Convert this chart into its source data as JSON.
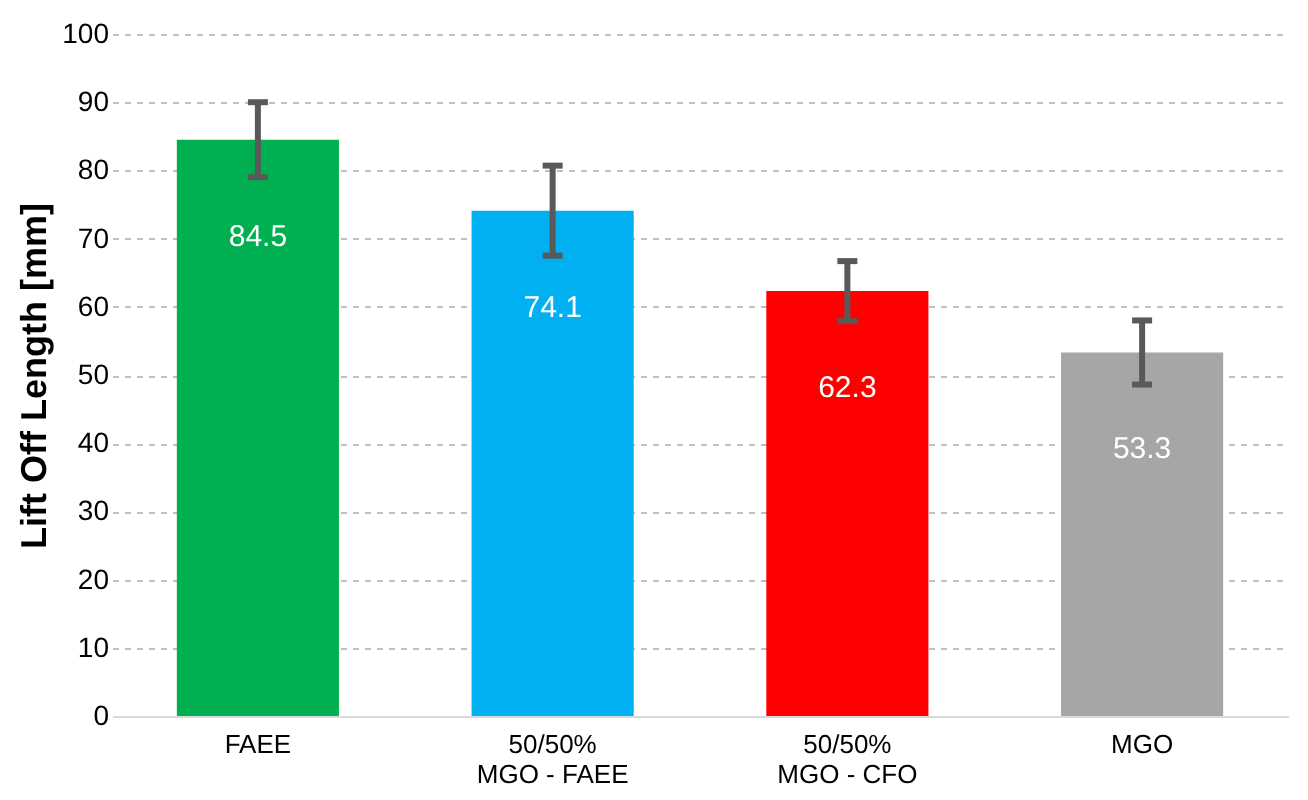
{
  "chart_data": {
    "type": "bar",
    "ylabel": "Lift Off Length [mm]",
    "categories": [
      "FAEE",
      "50/50%\nMGO - FAEE",
      "50/50%\nMGO - CFO",
      "MGO"
    ],
    "values": [
      84.5,
      74.1,
      62.3,
      53.3
    ],
    "colors": [
      "#00b050",
      "#00b0f0",
      "#ff0000",
      "#a6a6a6"
    ],
    "errors": [
      5.5,
      6.6,
      4.4,
      4.7
    ],
    "ylim": [
      0,
      100
    ],
    "yticks": [
      0,
      10,
      20,
      30,
      40,
      50,
      60,
      70,
      80,
      90,
      100
    ],
    "grid": "y",
    "data_labels": true
  }
}
